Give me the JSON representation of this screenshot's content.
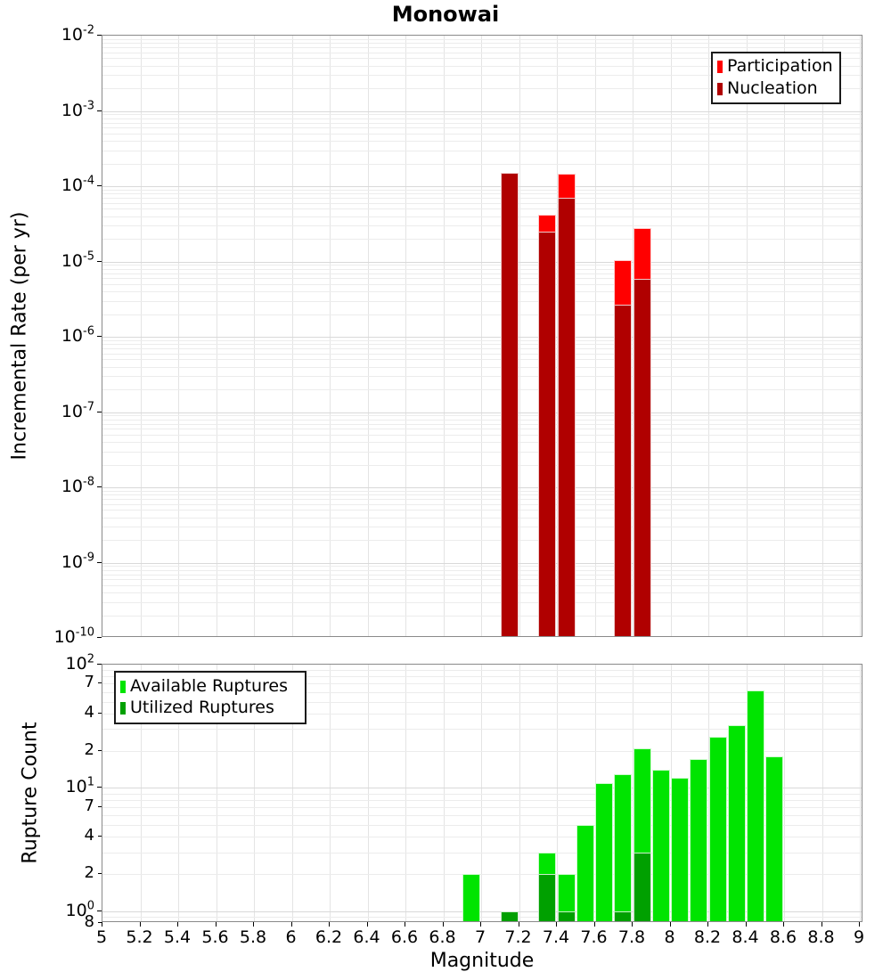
{
  "chart_data": [
    {
      "type": "bar",
      "title": "Monowai",
      "ylabel": "Incremental Rate (per yr)",
      "xlabel": "",
      "yscale": "log",
      "ylim": [
        1e-10,
        0.01
      ],
      "xlim": [
        5,
        9
      ],
      "grid": true,
      "legend_position": "top-right",
      "bar_width": 0.095,
      "ytick_exponents": [
        -2,
        -3,
        -4,
        -5,
        -6,
        -7,
        -8,
        -9,
        -10
      ],
      "series": [
        {
          "name": "Participation",
          "color": "#ff0000",
          "x": [
            7.15,
            7.35,
            7.45,
            7.75,
            7.85
          ],
          "values": [
            0.00015,
            4.2e-05,
            0.000145,
            1.05e-05,
            2.8e-05
          ]
        },
        {
          "name": "Nucleation",
          "color": "#b00000",
          "x": [
            7.15,
            7.35,
            7.45,
            7.75,
            7.85
          ],
          "values": [
            0.00015,
            2.5e-05,
            7e-05,
            2.7e-06,
            5.8e-06
          ]
        }
      ]
    },
    {
      "type": "bar",
      "title": "",
      "ylabel": "Rupture Count",
      "xlabel": "Magnitude",
      "yscale": "log",
      "ylim": [
        0.8,
        100
      ],
      "xlim": [
        5,
        9
      ],
      "grid": true,
      "legend_position": "top-left",
      "bar_width": 0.095,
      "ytick_exponents": [
        2,
        1,
        0
      ],
      "ytick_minor": [
        {
          "value": 70,
          "label": "7"
        },
        {
          "value": 40,
          "label": "4"
        },
        {
          "value": 20,
          "label": "2"
        },
        {
          "value": 7,
          "label": "7"
        },
        {
          "value": 4,
          "label": "4"
        },
        {
          "value": 2,
          "label": "2"
        },
        {
          "value": 0.8,
          "label": "8"
        }
      ],
      "xtick_values": [
        5,
        5.2,
        5.4,
        5.6,
        5.8,
        6,
        6.2,
        6.4,
        6.6,
        6.8,
        7,
        7.2,
        7.4,
        7.6,
        7.8,
        8,
        8.2,
        8.4,
        8.6,
        8.8,
        9
      ],
      "xtick_labels": [
        "5",
        "5.2",
        "5.4",
        "5.6",
        "5.8",
        "6",
        "6.2",
        "6.4",
        "6.6",
        "6.8",
        "7",
        "7.2",
        "7.4",
        "7.6",
        "7.8",
        "8",
        "8.2",
        "8.4",
        "8.6",
        "8.8",
        "9"
      ],
      "series": [
        {
          "name": "Available Ruptures",
          "color": "#00e400",
          "x": [
            6.95,
            7.15,
            7.35,
            7.45,
            7.55,
            7.65,
            7.75,
            7.85,
            7.95,
            8.05,
            8.15,
            8.25,
            8.35,
            8.45,
            8.55
          ],
          "values": [
            2,
            1,
            3,
            2,
            5,
            11,
            13,
            21,
            14,
            12,
            17,
            26,
            32,
            62,
            18
          ]
        },
        {
          "name": "Utilized Ruptures",
          "color": "#00a000",
          "x": [
            7.15,
            7.35,
            7.45,
            7.75,
            7.85
          ],
          "values": [
            1,
            2,
            1,
            1,
            3
          ]
        }
      ]
    }
  ]
}
